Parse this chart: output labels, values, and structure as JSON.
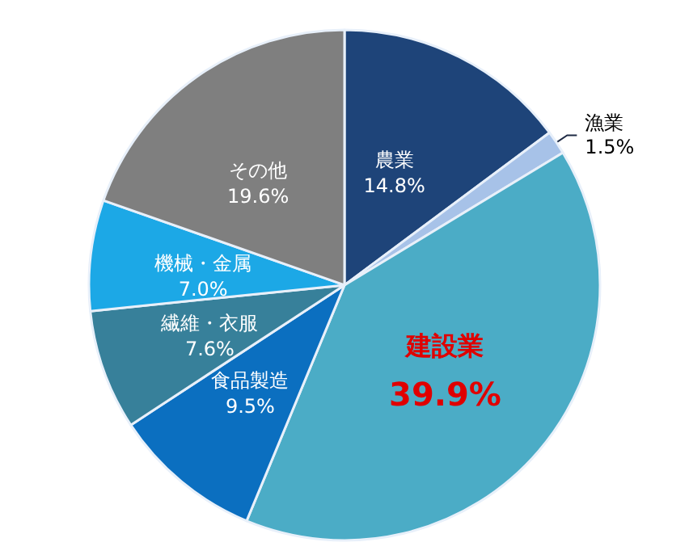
{
  "chart_data": {
    "type": "pie",
    "categories": [
      "農業",
      "漁業",
      "建設業",
      "食品製造",
      "繊維・衣服",
      "機械・金属",
      "その他"
    ],
    "values": [
      14.8,
      1.5,
      39.9,
      9.5,
      7.6,
      7.0,
      19.6
    ],
    "value_labels": [
      "14.8%",
      "1.5%",
      "39.9%",
      "9.5%",
      "7.6%",
      "7.0%",
      "19.6%"
    ],
    "colors": [
      "#1e4479",
      "#a7c2e8",
      "#4bacc6",
      "#0b6fc0",
      "#37809a",
      "#1ca8e6",
      "#7f7f7f"
    ],
    "legend": false
  }
}
